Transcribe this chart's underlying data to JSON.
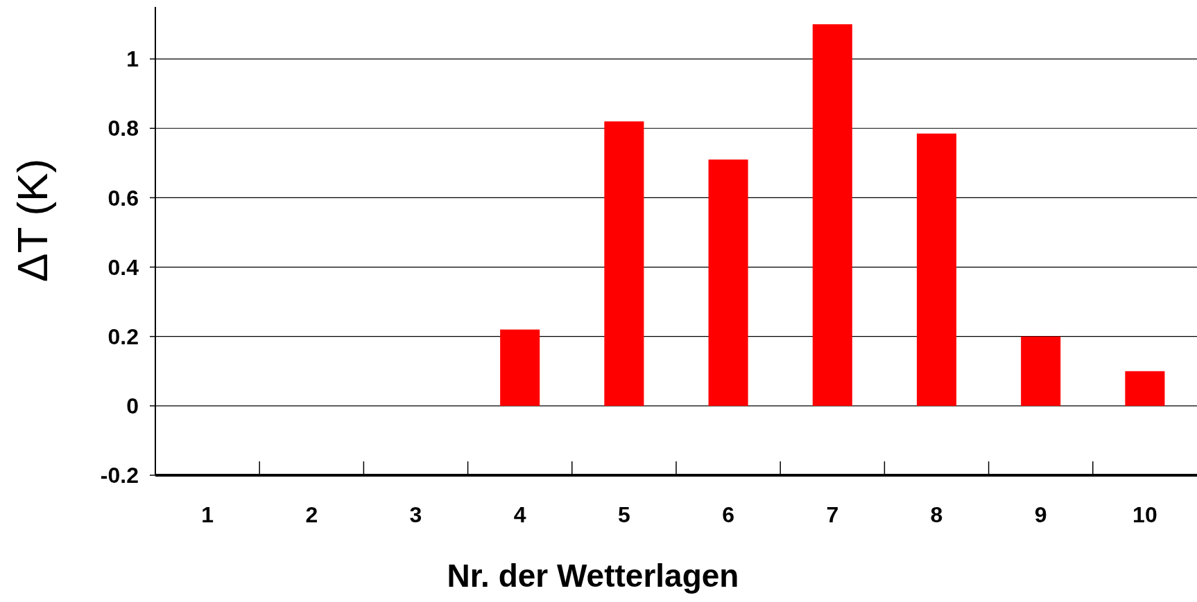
{
  "chart_data": {
    "type": "bar",
    "xlabel": "Nr. der Wetterlagen",
    "ylabel": "ΔT (K)",
    "categories": [
      "1",
      "2",
      "3",
      "4",
      "5",
      "6",
      "7",
      "8",
      "9",
      "10"
    ],
    "values": [
      0,
      0,
      0,
      0.22,
      0.82,
      0.71,
      1.1,
      0.785,
      0.2,
      0.1
    ],
    "color": "#ff0000",
    "ylim": [
      -0.2,
      1.15
    ],
    "yticks": [
      -0.2,
      0,
      {
        "value": 0.2,
        "label": "0.2"
      },
      {
        "value": 0.4,
        "label": "0.4"
      },
      {
        "value": 0.6,
        "label": "0.6"
      },
      {
        "value": 0.8,
        "label": "0.8"
      },
      1
    ],
    "grid": "y"
  }
}
